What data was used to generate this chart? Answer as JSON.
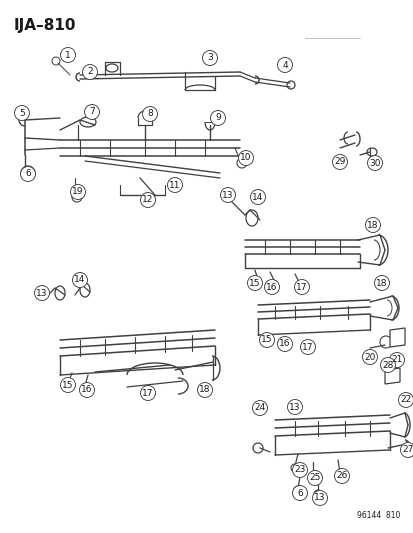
{
  "title": "IJA–810",
  "footer": "96144  810",
  "bg_color": "#ffffff",
  "lc": "#404040",
  "tc": "#1a1a1a",
  "fig_w": 4.14,
  "fig_h": 5.33,
  "dpi": 100
}
